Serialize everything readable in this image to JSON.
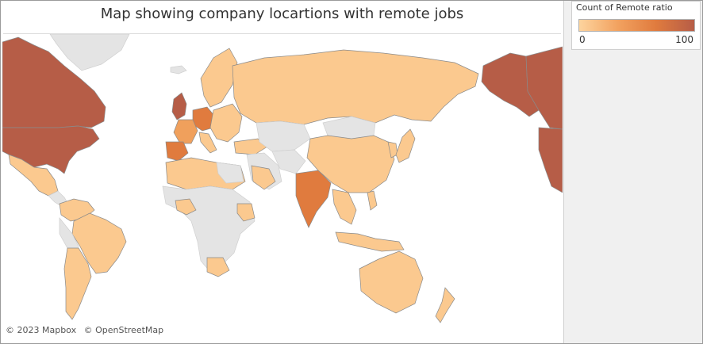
{
  "title": "Map showing company locartions with remote jobs",
  "attribution": [
    "© 2023 Mapbox",
    "© OpenStreetMap"
  ],
  "legend": {
    "title": "Count of Remote ratio",
    "min_label": "0",
    "max_label": "100",
    "colors": [
      "#fdd49e",
      "#f2a260",
      "#e07b3e",
      "#b65d47"
    ]
  },
  "colors": {
    "no_data": "#e4e4e4",
    "border": "#8a8a8a",
    "water": "#ffffff"
  },
  "map_data": {
    "measure": "Count of Remote ratio",
    "regions": [
      {
        "name": "United States",
        "level": "high"
      },
      {
        "name": "Canada",
        "level": "high"
      },
      {
        "name": "Alaska",
        "level": "high"
      },
      {
        "name": "United Kingdom",
        "level": "high"
      },
      {
        "name": "Spain",
        "level": "medium-high"
      },
      {
        "name": "India",
        "level": "medium-high"
      },
      {
        "name": "Germany",
        "level": "medium-high"
      },
      {
        "name": "France",
        "level": "medium"
      },
      {
        "name": "Russia",
        "level": "low"
      },
      {
        "name": "China",
        "level": "low"
      },
      {
        "name": "Brazil",
        "level": "low"
      },
      {
        "name": "Australia",
        "level": "low"
      },
      {
        "name": "Mexico",
        "level": "low"
      },
      {
        "name": "Argentina",
        "level": "low"
      },
      {
        "name": "Japan",
        "level": "low"
      },
      {
        "name": "Mongolia",
        "level": "no-data"
      },
      {
        "name": "Kazakhstan",
        "level": "no-data"
      },
      {
        "name": "Central Africa",
        "level": "no-data"
      },
      {
        "name": "Greenland",
        "level": "no-data"
      }
    ]
  }
}
